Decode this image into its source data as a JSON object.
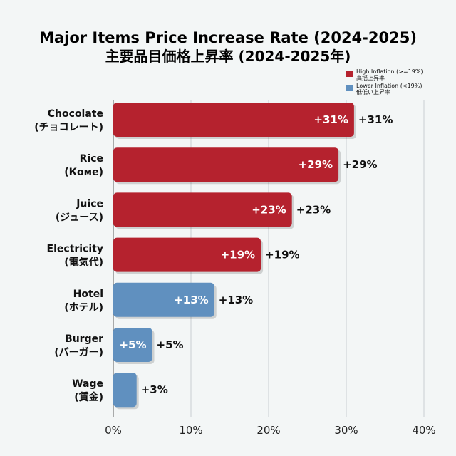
{
  "chart_data": {
    "type": "bar",
    "orientation": "horizontal",
    "title": "Major Items Price Increase Rate (2024-2025)",
    "subtitle": "主要品目価格上昇率 (2024-2025年)",
    "categories": [
      {
        "name": "Chocolate",
        "jp": "(チョコレート)"
      },
      {
        "name": "Rice",
        "jp": "(Коме)"
      },
      {
        "name": "Juice",
        "jp": "(ジュース)"
      },
      {
        "name": "Electricity",
        "jp": "(電気代)"
      },
      {
        "name": "Hotel",
        "jp": "(ホテル)"
      },
      {
        "name": "Burger",
        "jp": "(バーガー)"
      },
      {
        "name": "Wage",
        "jp": "(賃金)"
      }
    ],
    "values": [
      31,
      29,
      23,
      19,
      13,
      5,
      3
    ],
    "value_labels": [
      "+31%",
      "+29%",
      "+23%",
      "+19%",
      "+13%",
      "+5%",
      "+3%"
    ],
    "groups": [
      "high",
      "high",
      "high",
      "high",
      "low",
      "low",
      "low"
    ],
    "xlim": [
      0,
      40
    ],
    "xticks": [
      0,
      10,
      20,
      30,
      40
    ],
    "xtick_labels": [
      "0%",
      "10%",
      "20%",
      "30%",
      "40%"
    ],
    "grid": true,
    "legend_position": "top-right",
    "legend": [
      {
        "key": "high",
        "label": "High Inflation (>=19%)",
        "jp": "高揺上昇率",
        "color": "#b5222e"
      },
      {
        "key": "low",
        "label": "Lower Inflation (<19%)",
        "jp": "低低い上昇率",
        "color": "#6090bf"
      }
    ]
  }
}
